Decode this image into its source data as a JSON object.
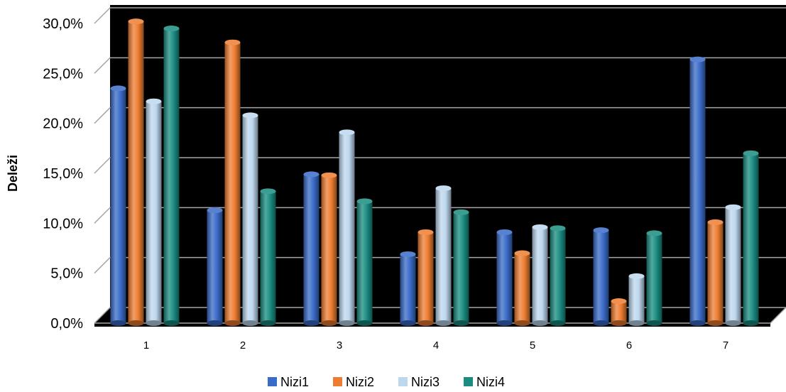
{
  "chart_data": {
    "type": "bar",
    "title": "",
    "xlabel": "",
    "ylabel": "Deleži",
    "categories": [
      "1",
      "2",
      "3",
      "4",
      "5",
      "6",
      "7"
    ],
    "series": [
      {
        "name": "Nizi1",
        "color": "#3a6bc8",
        "values": [
          23.5,
          11.3,
          14.9,
          6.9,
          9.1,
          9.3,
          26.4
        ]
      },
      {
        "name": "Nizi2",
        "color": "#ed7d31",
        "values": [
          30.2,
          28.1,
          14.8,
          9.1,
          7.0,
          2.2,
          10.1
        ]
      },
      {
        "name": "Nizi3",
        "color": "#bdd7ee",
        "values": [
          22.2,
          20.8,
          19.1,
          13.5,
          9.6,
          4.7,
          11.6
        ]
      },
      {
        "name": "Nizi4",
        "color": "#1a8c80",
        "values": [
          29.5,
          13.2,
          12.2,
          11.1,
          9.5,
          9.0,
          17.0
        ]
      }
    ],
    "ylim": [
      0,
      30
    ],
    "yticks": [
      "0,0%",
      "5,0%",
      "10,0%",
      "15,0%",
      "20,0%",
      "25,0%",
      "30,0%"
    ],
    "grid": true,
    "legend_position": "bottom",
    "background": "#000000"
  }
}
